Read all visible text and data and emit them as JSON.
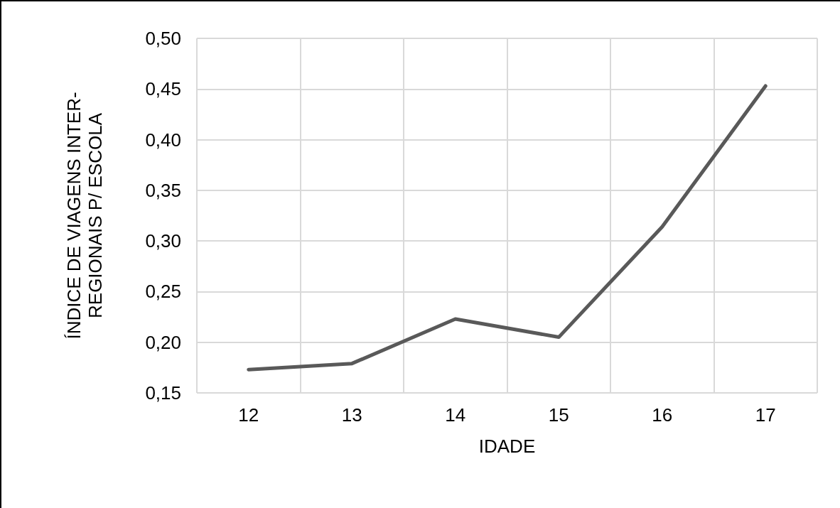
{
  "chart_data": {
    "type": "line",
    "xlabel": "IDADE",
    "ylabel": "ÍNDICE DE VIAGENS INTER-\nREGIONAIS P/ ESCOLA",
    "categories": [
      "12",
      "13",
      "14",
      "15",
      "16",
      "17"
    ],
    "series": [
      {
        "color": "#595959",
        "values": [
          0.173,
          0.179,
          0.223,
          0.205,
          0.314,
          0.453
        ]
      }
    ],
    "ylim": [
      0.15,
      0.5
    ],
    "yticks": [
      {
        "value": 0.15,
        "label": "0,15"
      },
      {
        "value": 0.2,
        "label": "0,20"
      },
      {
        "value": 0.25,
        "label": "0,25"
      },
      {
        "value": 0.3,
        "label": "0,30"
      },
      {
        "value": 0.35,
        "label": "0,35"
      },
      {
        "value": 0.4,
        "label": "0,40"
      },
      {
        "value": 0.45,
        "label": "0,45"
      },
      {
        "value": 0.5,
        "label": "0,50"
      }
    ],
    "grid": true,
    "marker": "none",
    "line_style": "solid"
  }
}
